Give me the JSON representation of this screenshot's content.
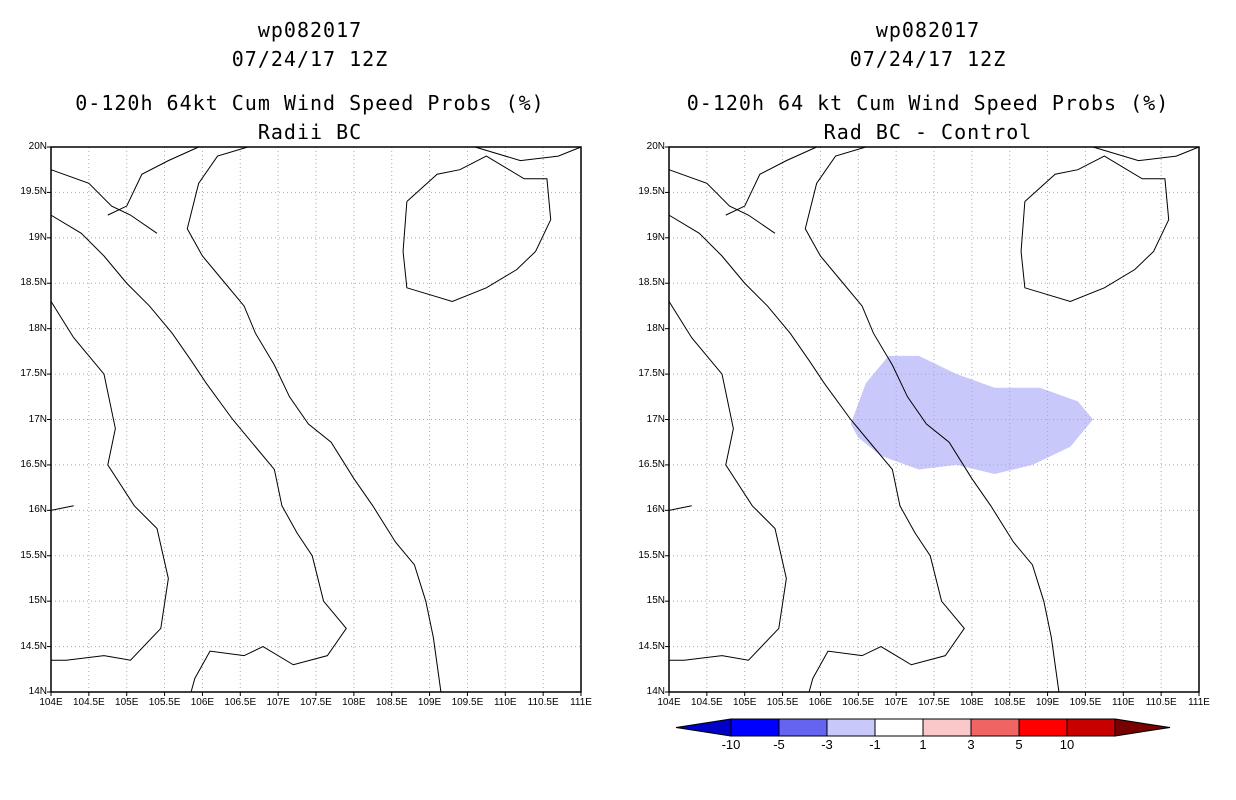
{
  "panels": [
    {
      "title_storm": "wp082017",
      "title_date": "07/24/17 12Z",
      "title_product": "0-120h 64kt Cum Wind Speed Probs (%)",
      "title_variant": "Radii BC"
    },
    {
      "title_storm": "wp082017",
      "title_date": "07/24/17 12Z",
      "title_product": "0-120h 64 kt Cum Wind Speed Probs (%)",
      "title_variant": "Rad BC - Control"
    }
  ],
  "map": {
    "lat_labels": [
      "20N",
      "19.5N",
      "19N",
      "18.5N",
      "18N",
      "17.5N",
      "17N",
      "16.5N",
      "16N",
      "15.5N",
      "15N",
      "14.5N",
      "14N"
    ],
    "lon_labels": [
      "104E",
      "104.5E",
      "105E",
      "105.5E",
      "106E",
      "106.5E",
      "107E",
      "107.5E",
      "108E",
      "108.5E",
      "109E",
      "109.5E",
      "110E",
      "110.5E",
      "111E"
    ],
    "lat_range": [
      14,
      20
    ],
    "lon_range": [
      104,
      111
    ],
    "grid": true,
    "difference_region": {
      "value_bin": "-3 to -1",
      "color": "#c8c8fa",
      "outline_lonlat": [
        [
          106.4,
          16.95
        ],
        [
          106.6,
          17.4
        ],
        [
          106.9,
          17.7
        ],
        [
          107.3,
          17.7
        ],
        [
          107.8,
          17.5
        ],
        [
          108.3,
          17.35
        ],
        [
          108.9,
          17.35
        ],
        [
          109.4,
          17.2
        ],
        [
          109.6,
          17.0
        ],
        [
          109.3,
          16.7
        ],
        [
          108.8,
          16.5
        ],
        [
          108.3,
          16.4
        ],
        [
          107.8,
          16.5
        ],
        [
          107.3,
          16.45
        ],
        [
          106.8,
          16.6
        ],
        [
          106.5,
          16.8
        ]
      ]
    }
  },
  "colorbar": {
    "labels": [
      "-10",
      "-5",
      "-3",
      "-1",
      "1",
      "3",
      "5",
      "10"
    ],
    "colors": [
      "#0000c8",
      "#0000ff",
      "#6464f0",
      "#c8c8fa",
      "#ffffff",
      "#fac8c8",
      "#f06464",
      "#ff0000",
      "#c80000",
      "#780000"
    ]
  }
}
